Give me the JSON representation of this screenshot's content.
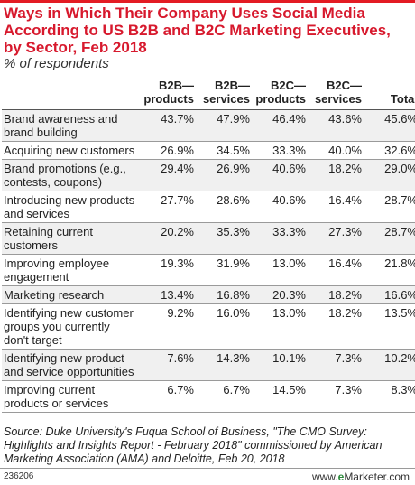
{
  "chart_data": {
    "type": "table",
    "title": "Ways in Which Their Company Uses Social Media According to US B2B and B2C Marketing Executives, by Sector, Feb 2018",
    "subtitle": "% of respondents",
    "columns": [
      "B2B—products",
      "B2B—services",
      "B2C—products",
      "B2C—services",
      "Total"
    ],
    "rows": [
      {
        "label": "Brand awareness and brand building",
        "values": [
          "43.7%",
          "47.9%",
          "46.4%",
          "43.6%",
          "45.6%"
        ]
      },
      {
        "label": "Acquiring new customers",
        "values": [
          "26.9%",
          "34.5%",
          "33.3%",
          "40.0%",
          "32.6%"
        ]
      },
      {
        "label": "Brand promotions (e.g., contests, coupons)",
        "values": [
          "29.4%",
          "26.9%",
          "40.6%",
          "18.2%",
          "29.0%"
        ]
      },
      {
        "label": "Introducing new products and services",
        "values": [
          "27.7%",
          "28.6%",
          "40.6%",
          "16.4%",
          "28.7%"
        ]
      },
      {
        "label": "Retaining current customers",
        "values": [
          "20.2%",
          "35.3%",
          "33.3%",
          "27.3%",
          "28.7%"
        ]
      },
      {
        "label": "Improving employee engagement",
        "values": [
          "19.3%",
          "31.9%",
          "13.0%",
          "16.4%",
          "21.8%"
        ]
      },
      {
        "label": "Marketing research",
        "values": [
          "13.4%",
          "16.8%",
          "20.3%",
          "18.2%",
          "16.6%"
        ]
      },
      {
        "label": "Identifying new customer groups you currently don't target",
        "values": [
          "9.2%",
          "16.0%",
          "13.0%",
          "18.2%",
          "13.5%"
        ]
      },
      {
        "label": "Identifying new product and service opportunities",
        "values": [
          "7.6%",
          "14.3%",
          "10.1%",
          "7.3%",
          "10.2%"
        ]
      },
      {
        "label": "Improving current products or services",
        "values": [
          "6.7%",
          "6.7%",
          "14.5%",
          "7.3%",
          "8.3%"
        ]
      }
    ],
    "source": "Source: Duke University's Fuqua School of Business, \"The CMO Survey: Highlights and Insights Report - February 2018\" commissioned by American Marketing Association (AMA) and Deloitte, Feb 20, 2018",
    "chart_id": "236206",
    "brand": {
      "prefix": "www.",
      "bold": "e",
      "suffix": "Marketer.com"
    }
  },
  "colors": {
    "title": "#d7192d",
    "rule": "#e31b23",
    "row_shade": "#f0f0f0",
    "brand_accent": "#2c8a3c"
  }
}
